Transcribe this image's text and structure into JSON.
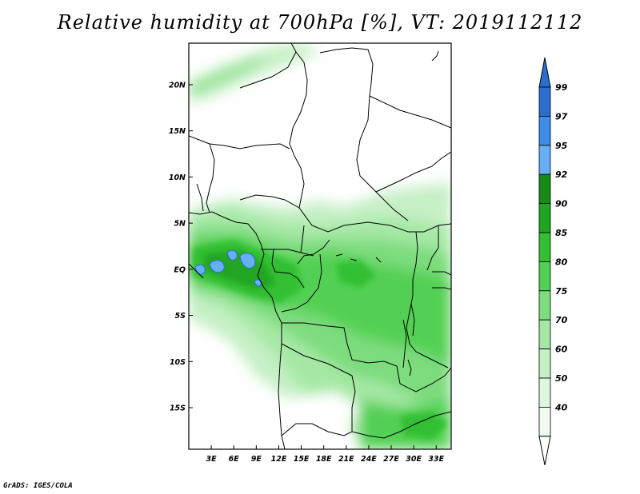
{
  "title": "Relative humidity at 700hPa [%], VT: 2019112112",
  "credit": "GrADS: IGES/COLA",
  "map": {
    "lat_range": [
      -19.5,
      24.5
    ],
    "lon_range": [
      0,
      35
    ],
    "lat_ticks": [
      {
        "value": 20,
        "label": "20N"
      },
      {
        "value": 15,
        "label": "15N"
      },
      {
        "value": 10,
        "label": "10N"
      },
      {
        "value": 5,
        "label": "5N"
      },
      {
        "value": 0,
        "label": "EQ"
      },
      {
        "value": -5,
        "label": "5S"
      },
      {
        "value": -10,
        "label": "10S"
      },
      {
        "value": -15,
        "label": "15S"
      }
    ],
    "lon_ticks": [
      {
        "value": 3,
        "label": "3E"
      },
      {
        "value": 6,
        "label": "6E"
      },
      {
        "value": 9,
        "label": "9E"
      },
      {
        "value": 12,
        "label": "12E"
      },
      {
        "value": 15,
        "label": "15E"
      },
      {
        "value": 18,
        "label": "18E"
      },
      {
        "value": 21,
        "label": "21E"
      },
      {
        "value": 24,
        "label": "24E"
      },
      {
        "value": 27,
        "label": "27E"
      },
      {
        "value": 30,
        "label": "30E"
      },
      {
        "value": 33,
        "label": "33E"
      }
    ]
  },
  "colorbar": {
    "levels": [
      {
        "label": "99",
        "color": "#2a6fd0"
      },
      {
        "label": "97",
        "color": "#3d8ee8"
      },
      {
        "label": "95",
        "color": "#67aef5"
      },
      {
        "label": "92",
        "color": "#168c16"
      },
      {
        "label": "90",
        "color": "#20a520"
      },
      {
        "label": "85",
        "color": "#32c032"
      },
      {
        "label": "80",
        "color": "#52d052"
      },
      {
        "label": "75",
        "color": "#7ddc7d"
      },
      {
        "label": "70",
        "color": "#a5e8a5"
      },
      {
        "label": "60",
        "color": "#c6f0c6"
      },
      {
        "label": "50",
        "color": "#def7de"
      },
      {
        "label": "40",
        "color": "#f0fcf0"
      }
    ],
    "top_color": "#2a6fd0",
    "bottom_color": "#ffffff"
  }
}
